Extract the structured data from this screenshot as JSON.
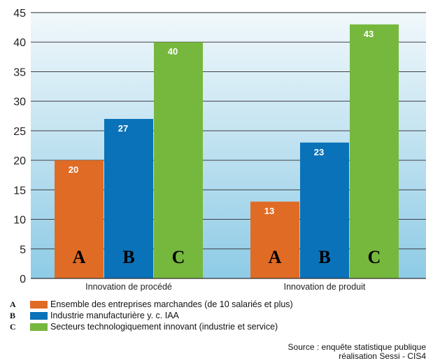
{
  "chart_data": {
    "type": "bar",
    "categories": [
      "Innovation de procédé",
      "Innovation de produit"
    ],
    "series": [
      {
        "letter": "A",
        "name": "Ensemble des entreprises marchandes (de 10 salariés et plus)",
        "color": "#e06b25",
        "values": [
          20,
          13
        ]
      },
      {
        "letter": "B",
        "name": "Industrie manufacturière y. c. IAA",
        "color": "#0a72b8",
        "values": [
          27,
          23
        ]
      },
      {
        "letter": "C",
        "name": "Secteurs technologiquement innovant (industrie et service)",
        "color": "#76b83e",
        "values": [
          40,
          43
        ]
      }
    ],
    "ylim": [
      0,
      45
    ],
    "yticks": [
      0,
      5,
      10,
      15,
      20,
      25,
      30,
      35,
      40,
      45
    ],
    "grid": true,
    "plot_background": [
      "#f1f8fb",
      "#8ecbe6"
    ]
  },
  "source": {
    "line1": "Source : enquête statistique publique",
    "line2": "réalisation Sessi - CIS4"
  }
}
